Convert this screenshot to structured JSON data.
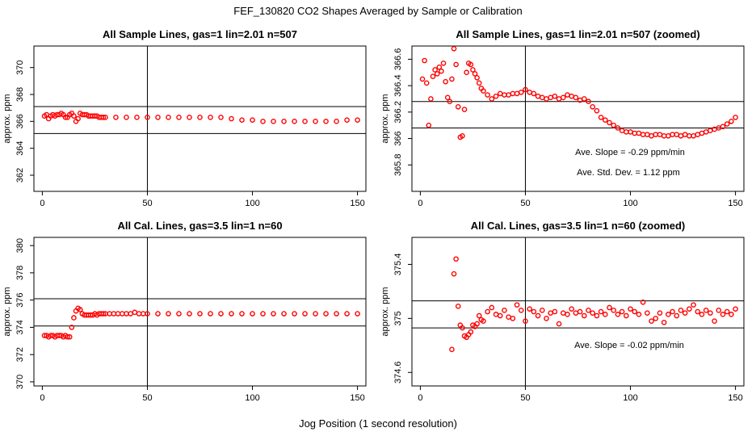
{
  "figure": {
    "suptitle": "FEF_130820  CO2 Shapes Averaged by Sample or Calibration",
    "xlabel": "Jog Position (1 second resolution)"
  },
  "chart_data": [
    {
      "type": "scatter",
      "title": "All Sample Lines, gas=1 lin=2.01 n=507",
      "ylabel": "approx. ppm",
      "xlim": [
        -4,
        154
      ],
      "ylim": [
        360.8,
        371.6
      ],
      "xticks": [
        0,
        50,
        100,
        150
      ],
      "yticks": [
        362,
        364,
        366,
        368,
        370
      ],
      "vline": 50,
      "hlines": [
        367.1,
        365.1
      ],
      "annotations": [],
      "series": [
        {
          "name": "sample",
          "color": "#ff0000",
          "x": [
            1,
            2,
            3,
            4,
            5,
            6,
            7,
            8,
            9,
            10,
            11,
            12,
            13,
            14,
            15,
            16,
            17,
            18,
            19,
            20,
            21,
            22,
            23,
            24,
            25,
            26,
            27,
            28,
            29,
            30,
            35,
            40,
            45,
            50,
            55,
            60,
            65,
            70,
            75,
            80,
            85,
            90,
            95,
            100,
            105,
            110,
            115,
            120,
            125,
            130,
            135,
            140,
            145,
            150
          ],
          "y": [
            366.4,
            366.5,
            366.2,
            366.4,
            366.5,
            366.4,
            366.5,
            366.5,
            366.6,
            366.5,
            366.3,
            366.3,
            366.5,
            366.6,
            366.4,
            366.0,
            366.2,
            366.6,
            366.5,
            366.5,
            366.5,
            366.4,
            366.4,
            366.4,
            366.4,
            366.4,
            366.3,
            366.3,
            366.3,
            366.3,
            366.3,
            366.3,
            366.3,
            366.3,
            366.3,
            366.3,
            366.3,
            366.3,
            366.3,
            366.3,
            366.3,
            366.2,
            366.1,
            366.1,
            366.0,
            366.0,
            366.0,
            366.0,
            366.0,
            366.0,
            366.0,
            366.0,
            366.1,
            366.1
          ]
        }
      ]
    },
    {
      "type": "scatter",
      "title": "All Sample Lines, gas=1 lin=2.01 n=507 (zoomed)",
      "ylabel": "approx. ppm",
      "xlim": [
        -4,
        154
      ],
      "ylim": [
        365.6,
        366.7
      ],
      "xticks": [
        0,
        50,
        100,
        150
      ],
      "yticks": [
        365.8,
        366.0,
        366.2,
        366.4,
        366.6
      ],
      "vline": 50,
      "hlines": [
        366.28,
        366.08
      ],
      "annotations": [
        "Ave. Slope = -0.29 ppm/min",
        "Ave. Std. Dev. = 1.12 ppm"
      ],
      "series": [
        {
          "name": "sample",
          "color": "#ff0000",
          "x": [
            1,
            2,
            3,
            4,
            5,
            6,
            7,
            8,
            9,
            10,
            11,
            12,
            13,
            14,
            15,
            16,
            17,
            18,
            19,
            20,
            21,
            22,
            23,
            24,
            25,
            26,
            27,
            28,
            29,
            30,
            32,
            34,
            36,
            38,
            40,
            42,
            44,
            46,
            48,
            50,
            52,
            54,
            56,
            58,
            60,
            62,
            64,
            66,
            68,
            70,
            72,
            74,
            76,
            78,
            80,
            82,
            84,
            86,
            88,
            90,
            92,
            94,
            96,
            98,
            100,
            102,
            104,
            106,
            108,
            110,
            112,
            114,
            116,
            118,
            120,
            122,
            124,
            126,
            128,
            130,
            132,
            134,
            136,
            138,
            140,
            142,
            144,
            146,
            148,
            150
          ],
          "y": [
            366.45,
            366.59,
            366.42,
            366.1,
            366.3,
            366.47,
            366.52,
            366.49,
            366.54,
            366.51,
            366.57,
            366.43,
            366.31,
            366.28,
            366.45,
            366.68,
            366.56,
            366.24,
            366.01,
            366.02,
            366.22,
            366.5,
            366.57,
            366.56,
            366.52,
            366.49,
            366.46,
            366.42,
            366.38,
            366.36,
            366.33,
            366.3,
            366.32,
            366.34,
            366.33,
            366.33,
            366.34,
            366.34,
            366.35,
            366.37,
            366.35,
            366.34,
            366.32,
            366.31,
            366.3,
            366.31,
            366.32,
            366.3,
            366.31,
            366.33,
            366.32,
            366.31,
            366.29,
            366.3,
            366.28,
            366.24,
            366.21,
            366.16,
            366.14,
            366.12,
            366.1,
            366.08,
            366.06,
            366.05,
            366.05,
            366.04,
            366.04,
            366.03,
            366.03,
            366.02,
            366.03,
            366.03,
            366.02,
            366.02,
            366.03,
            366.03,
            366.02,
            366.03,
            366.02,
            366.02,
            366.03,
            366.04,
            366.05,
            366.06,
            366.07,
            366.08,
            366.09,
            366.11,
            366.13,
            366.16
          ]
        }
      ]
    },
    {
      "type": "scatter",
      "title": "All Cal. Lines, gas=3.5 lin=1 n=60",
      "ylabel": "approx. ppm",
      "xlim": [
        -4,
        154
      ],
      "ylim": [
        369.7,
        380.6
      ],
      "xticks": [
        0,
        50,
        100,
        150
      ],
      "yticks": [
        370,
        372,
        374,
        376,
        378,
        380
      ],
      "vline": 50,
      "hlines": [
        376.1,
        374.1
      ],
      "annotations": [],
      "series": [
        {
          "name": "cal",
          "color": "#ff0000",
          "x": [
            1,
            2,
            3,
            4,
            5,
            6,
            7,
            8,
            9,
            10,
            11,
            12,
            13,
            14,
            15,
            16,
            17,
            18,
            19,
            20,
            21,
            22,
            23,
            24,
            25,
            26,
            27,
            28,
            29,
            30,
            32,
            34,
            36,
            38,
            40,
            42,
            44,
            46,
            48,
            50,
            55,
            60,
            65,
            70,
            75,
            80,
            85,
            90,
            95,
            100,
            105,
            110,
            115,
            120,
            125,
            130,
            135,
            140,
            145,
            150
          ],
          "y": [
            373.4,
            373.4,
            373.3,
            373.4,
            373.4,
            373.3,
            373.4,
            373.4,
            373.4,
            373.3,
            373.4,
            373.3,
            373.3,
            374.0,
            374.7,
            375.2,
            375.4,
            375.3,
            375.0,
            374.9,
            374.9,
            374.9,
            374.9,
            374.9,
            375.0,
            374.9,
            375.0,
            375.0,
            375.0,
            375.0,
            375.0,
            375.0,
            375.0,
            375.0,
            375.0,
            375.0,
            375.1,
            375.0,
            375.0,
            375.0,
            375.0,
            375.0,
            375.0,
            375.0,
            375.0,
            375.0,
            375.0,
            375.0,
            375.0,
            375.0,
            375.0,
            375.0,
            375.0,
            375.0,
            375.0,
            375.0,
            375.0,
            375.0,
            375.0,
            375.0
          ]
        }
      ]
    },
    {
      "type": "scatter",
      "title": "All Cal. Lines, gas=3.5 lin=1 n=60 (zoomed)",
      "ylabel": "approx. ppm",
      "xlim": [
        -4,
        154
      ],
      "ylim": [
        374.5,
        375.6
      ],
      "xticks": [
        0,
        50,
        100,
        150
      ],
      "yticks": [
        374.6,
        375.0,
        375.4
      ],
      "vline": 50,
      "hlines": [
        375.13,
        374.93
      ],
      "annotations": [
        "Ave. Slope = -0.02 ppm/min"
      ],
      "series": [
        {
          "name": "cal",
          "color": "#ff0000",
          "x": [
            15,
            16,
            17,
            18,
            19,
            20,
            21,
            22,
            23,
            24,
            25,
            26,
            27,
            28,
            29,
            30,
            32,
            34,
            36,
            38,
            40,
            42,
            44,
            46,
            48,
            50,
            52,
            54,
            56,
            58,
            60,
            62,
            64,
            66,
            68,
            70,
            72,
            74,
            76,
            78,
            80,
            82,
            84,
            86,
            88,
            90,
            92,
            94,
            96,
            98,
            100,
            102,
            104,
            106,
            108,
            110,
            112,
            114,
            116,
            118,
            120,
            122,
            124,
            126,
            128,
            130,
            132,
            134,
            136,
            138,
            140,
            142,
            144,
            146,
            148,
            150
          ],
          "y": [
            374.77,
            375.33,
            375.44,
            375.09,
            374.95,
            374.93,
            374.87,
            374.86,
            374.88,
            374.9,
            374.95,
            374.94,
            374.96,
            375.02,
            374.99,
            374.98,
            375.05,
            375.08,
            375.03,
            375.02,
            375.06,
            375.01,
            375.0,
            375.1,
            375.06,
            374.98,
            375.07,
            375.05,
            375.02,
            375.06,
            375.0,
            375.04,
            375.05,
            374.96,
            375.04,
            375.03,
            375.07,
            375.04,
            375.05,
            375.02,
            375.06,
            375.04,
            375.02,
            375.05,
            375.03,
            375.08,
            375.06,
            375.03,
            375.05,
            375.02,
            375.07,
            375.05,
            375.03,
            375.12,
            375.04,
            374.98,
            375.0,
            375.04,
            374.97,
            375.03,
            375.05,
            375.02,
            375.06,
            375.04,
            375.07,
            375.1,
            375.05,
            375.03,
            375.06,
            375.04,
            374.98,
            375.06,
            375.03,
            375.05,
            375.03,
            375.07
          ]
        }
      ]
    }
  ]
}
